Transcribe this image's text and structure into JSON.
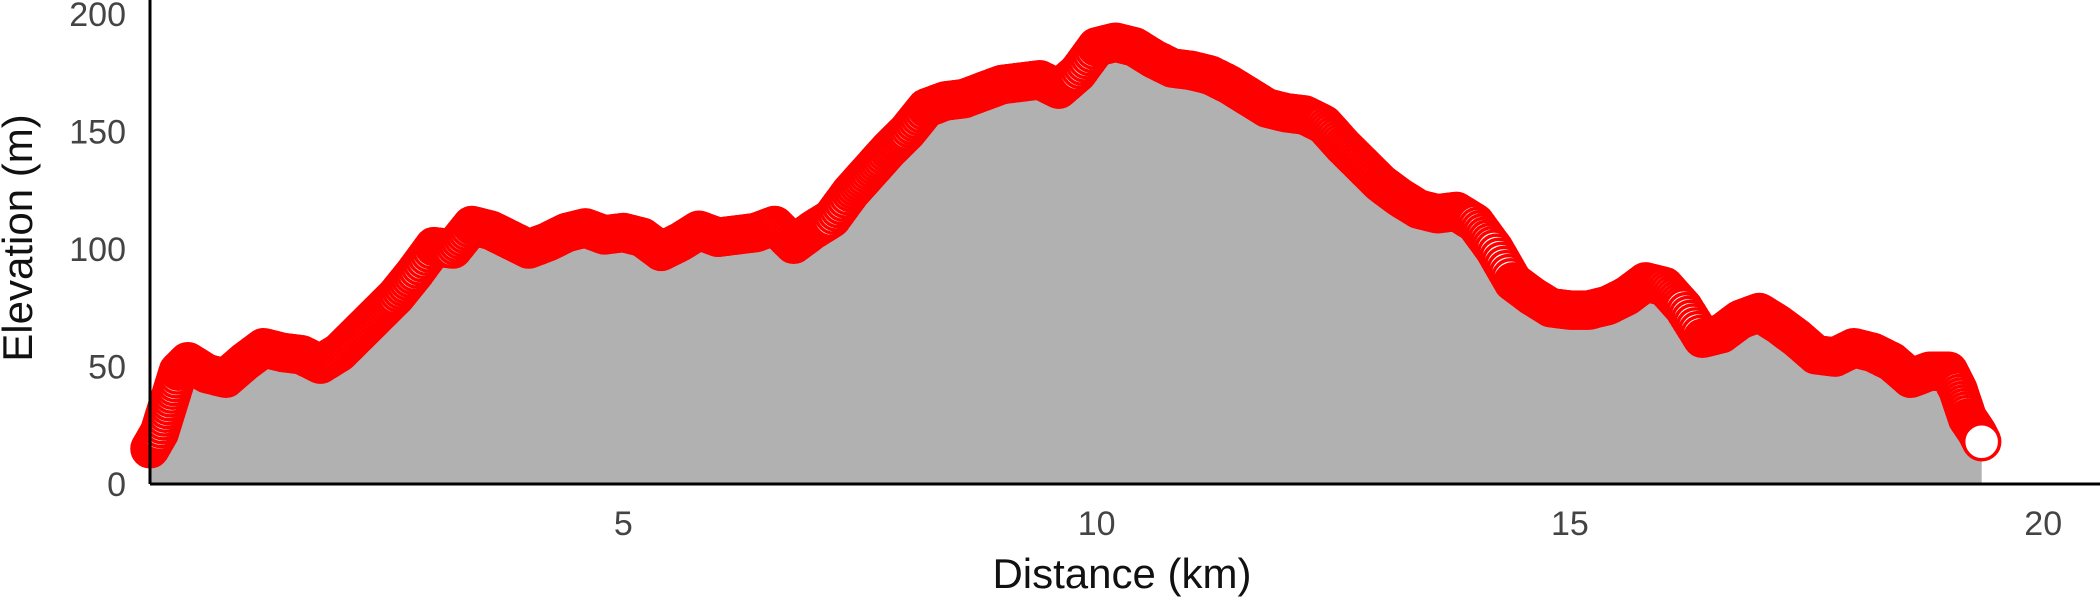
{
  "chart_data": {
    "type": "area",
    "xlabel": "Distance (km)",
    "ylabel": "Elevation (m)",
    "xlim": [
      0,
      20.6
    ],
    "ylim": [
      0,
      200
    ],
    "x_ticks": [
      {
        "value": 5,
        "label": "5"
      },
      {
        "value": 10,
        "label": "10"
      },
      {
        "value": 15,
        "label": "15"
      },
      {
        "value": 20,
        "label": "20"
      }
    ],
    "y_ticks": [
      {
        "value": 0,
        "label": "0"
      },
      {
        "value": 50,
        "label": "50"
      },
      {
        "value": 100,
        "label": "100"
      },
      {
        "value": 150,
        "label": "150"
      },
      {
        "value": 200,
        "label": "200"
      }
    ],
    "grid": false,
    "area_color": "#b1b1b1",
    "marker_color": "#ff0000",
    "marker_fill": "#ffffff",
    "endpoint_marker": true,
    "x": [
      0.0,
      0.1,
      0.2,
      0.3,
      0.4,
      0.6,
      0.8,
      1.0,
      1.2,
      1.4,
      1.6,
      1.8,
      2.0,
      2.2,
      2.4,
      2.6,
      2.8,
      3.0,
      3.2,
      3.4,
      3.6,
      3.8,
      4.0,
      4.2,
      4.4,
      4.6,
      4.8,
      5.0,
      5.2,
      5.4,
      5.6,
      5.8,
      6.0,
      6.2,
      6.4,
      6.6,
      6.8,
      7.0,
      7.2,
      7.4,
      7.6,
      7.8,
      8.0,
      8.2,
      8.4,
      8.6,
      8.8,
      9.0,
      9.2,
      9.4,
      9.6,
      9.8,
      10.0,
      10.2,
      10.4,
      10.6,
      10.8,
      11.0,
      11.2,
      11.4,
      11.6,
      11.8,
      12.0,
      12.2,
      12.4,
      12.6,
      12.8,
      13.0,
      13.2,
      13.4,
      13.6,
      13.8,
      14.0,
      14.2,
      14.4,
      14.6,
      14.8,
      15.0,
      15.2,
      15.4,
      15.6,
      15.8,
      16.0,
      16.2,
      16.4,
      16.6,
      16.8,
      17.0,
      17.2,
      17.4,
      17.6,
      17.8,
      18.0,
      18.2,
      18.4,
      18.6,
      18.8,
      19.0,
      19.1,
      19.2,
      19.3,
      19.35
    ],
    "y": [
      15,
      22,
      35,
      48,
      52,
      47,
      45,
      52,
      58,
      56,
      55,
      51,
      56,
      64,
      72,
      80,
      90,
      101,
      100,
      110,
      108,
      104,
      100,
      103,
      107,
      109,
      106,
      107,
      105,
      99,
      103,
      108,
      105,
      106,
      107,
      110,
      102,
      108,
      113,
      124,
      133,
      142,
      150,
      160,
      163,
      164,
      167,
      170,
      171,
      172,
      168,
      175,
      186,
      188,
      186,
      181,
      177,
      176,
      174,
      170,
      165,
      160,
      158,
      157,
      153,
      144,
      136,
      128,
      122,
      117,
      115,
      116,
      111,
      100,
      86,
      80,
      75,
      74,
      74,
      76,
      80,
      86,
      84,
      75,
      62,
      64,
      70,
      73,
      68,
      62,
      55,
      54,
      58,
      56,
      52,
      45,
      48,
      48,
      40,
      28,
      22,
      18
    ]
  }
}
